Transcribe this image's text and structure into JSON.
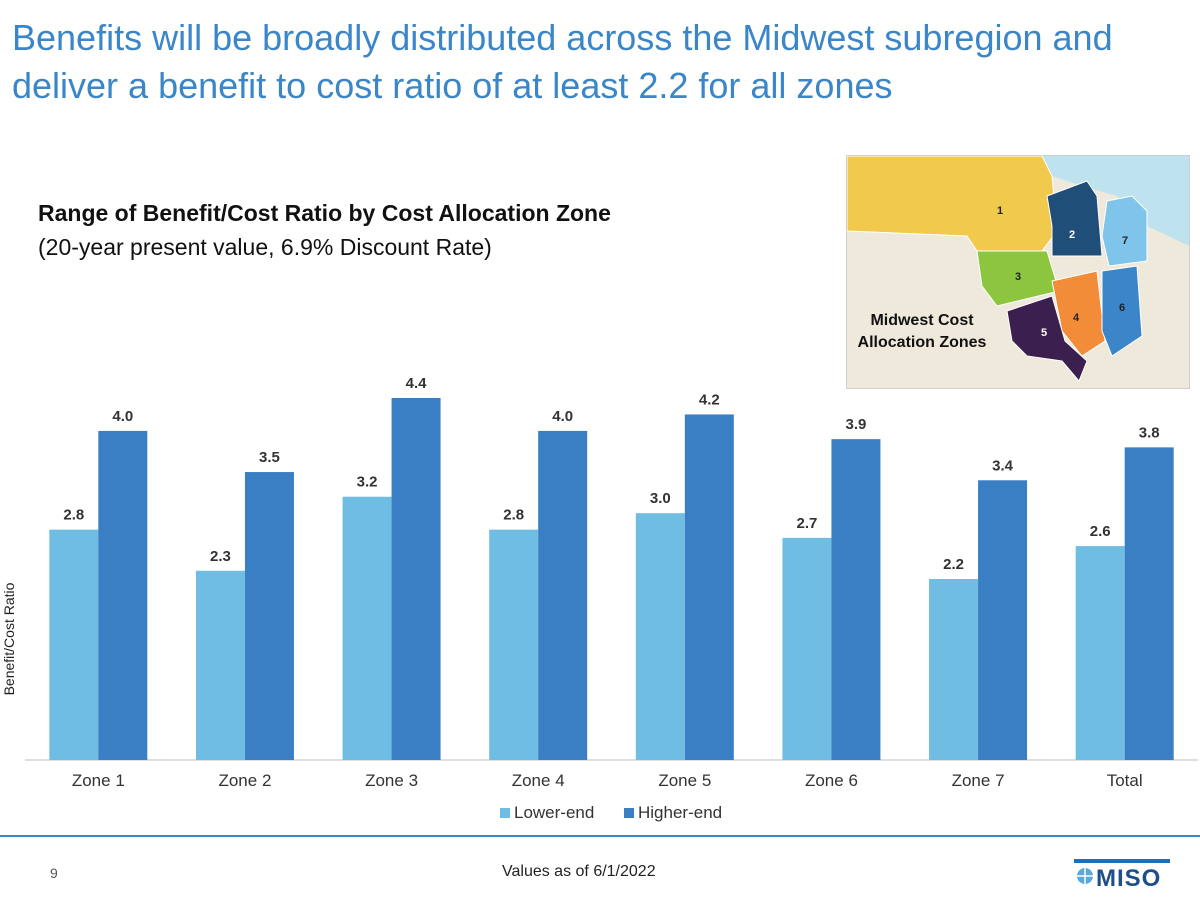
{
  "slide": {
    "title": "Benefits will be broadly distributed across the Midwest subregion and deliver a benefit to cost ratio of at least 2.2 for all zones",
    "page_number": "9",
    "footer_note": "Values as of 6/1/2022",
    "logo_text": "MISO"
  },
  "map": {
    "label": "Midwest Cost Allocation Zones",
    "zone_labels": [
      "1",
      "2",
      "3",
      "4",
      "5",
      "6",
      "7"
    ],
    "colors": {
      "zone1": "#f1c94c",
      "zone2": "#1f4e79",
      "zone3": "#8cc63f",
      "zone4": "#f28c38",
      "zone5": "#3b1f4f",
      "zone6": "#3a86c8",
      "zone7": "#7fc4ea",
      "water": "#bfe3ee",
      "land": "#efe9dc"
    }
  },
  "chart_data": {
    "type": "bar",
    "title": "Range of Benefit/Cost Ratio by Cost Allocation Zone",
    "subtitle": "(20-year present value, 6.9% Discount Rate)",
    "xlabel": "",
    "ylabel": "Benefit/Cost Ratio",
    "categories": [
      "Zone 1",
      "Zone 2",
      "Zone 3",
      "Zone 4",
      "Zone 5",
      "Zone 6",
      "Zone 7",
      "Total"
    ],
    "series": [
      {
        "name": "Lower-end",
        "color": "#70bde4",
        "values": [
          2.8,
          2.3,
          3.2,
          2.8,
          3.0,
          2.7,
          2.2,
          2.6
        ]
      },
      {
        "name": "Higher-end",
        "color": "#3a7ec4",
        "values": [
          4.0,
          3.5,
          4.4,
          4.0,
          4.2,
          3.9,
          3.4,
          3.8
        ]
      }
    ],
    "ylim": [
      0,
      4.4
    ],
    "grid": false,
    "legend_position": "bottom-center",
    "data_labels": true
  }
}
